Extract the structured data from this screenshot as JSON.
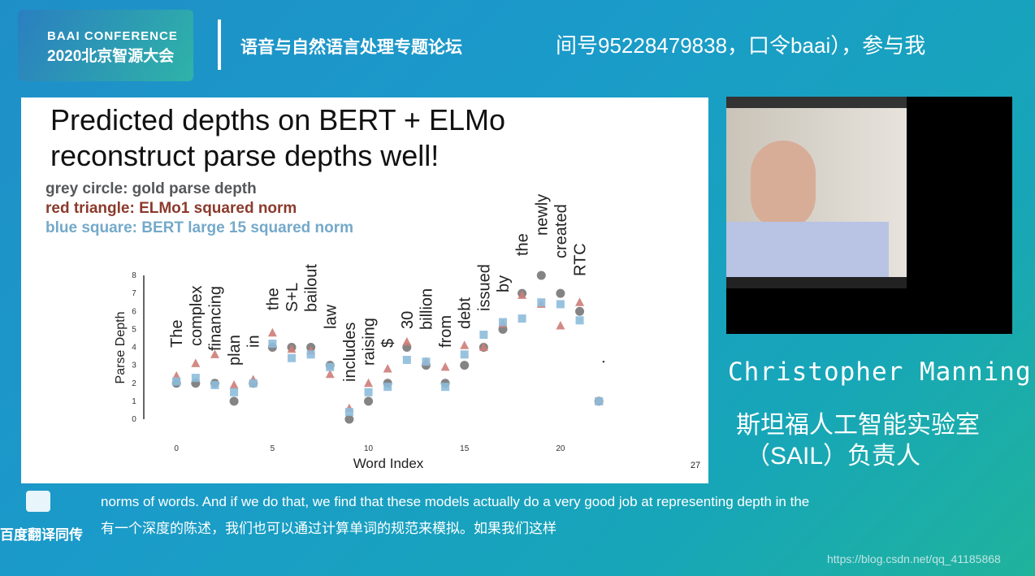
{
  "header": {
    "logo_top": "BAAI CONFERENCE",
    "logo_bottom": "2020北京智源大会",
    "forum": "语音与自然语言处理专题论坛",
    "ticker": "间号95228479838，口令baai），参与我"
  },
  "chart_data": {
    "type": "scatter",
    "title_lines": [
      "Predicted depths on BERT + ELMo",
      "reconstruct parse depths well!"
    ],
    "x": [
      0,
      1,
      2,
      3,
      4,
      5,
      6,
      7,
      8,
      9,
      10,
      11,
      12,
      13,
      14,
      15,
      16,
      17,
      18,
      19,
      20,
      21,
      22
    ],
    "words": [
      "The",
      "complex",
      "financing",
      "plan",
      "in",
      "the",
      "S+L",
      "bailout",
      "law",
      "includes",
      "raising",
      "$",
      "30",
      "billion",
      "from",
      "debt",
      "issued",
      "by",
      "the",
      "newly",
      "created",
      "RTC",
      "."
    ],
    "series": [
      {
        "name": "grey circle: gold parse depth",
        "legend_color": "#55585a",
        "color": "#6e6e6e",
        "marker": "circle",
        "values": [
          2,
          2,
          2,
          1,
          2,
          4,
          4,
          4,
          3,
          0,
          1,
          2,
          4,
          3,
          2,
          3,
          4,
          5,
          7,
          8,
          7,
          6,
          1
        ]
      },
      {
        "name": "red triangle: ELMo1 squared norm",
        "legend_color": "#8b3a2c",
        "color": "#cd7d78",
        "marker": "triangle",
        "values": [
          2.4,
          3.1,
          3.6,
          1.9,
          2.2,
          4.8,
          3.9,
          3.8,
          2.5,
          0.6,
          2.0,
          2.8,
          4.3,
          3.2,
          2.9,
          4.1,
          4.0,
          5.3,
          6.9,
          6.4,
          5.2,
          6.5,
          1.0
        ]
      },
      {
        "name": "blue square: BERT large 15 squared norm",
        "legend_color": "#74a9c9",
        "color": "#8dbcdc",
        "marker": "square",
        "values": [
          2.1,
          2.3,
          1.9,
          1.5,
          2.0,
          4.2,
          3.4,
          3.6,
          2.9,
          0.4,
          1.5,
          1.8,
          3.3,
          3.2,
          1.8,
          3.6,
          4.7,
          5.4,
          5.6,
          6.5,
          6.4,
          5.5,
          1.0
        ]
      }
    ],
    "xlabel": "Word Index",
    "ylabel": "Parse Depth",
    "xlim": [
      -1.7,
      22.5
    ],
    "ylim": [
      0,
      8
    ],
    "xticks": [
      0,
      5,
      10,
      15,
      20
    ],
    "yticks": [
      0,
      1,
      2,
      3,
      4,
      5,
      6,
      7,
      8
    ],
    "page_number": "27"
  },
  "speaker": {
    "name": "Christopher Manning",
    "title_line1": "斯坦福人工智能实验室",
    "title_line2": "（SAIL）负责人"
  },
  "subtitles": {
    "brand": "百度翻译同传",
    "english": "norms of words. And if we do that, we find that these models actually do a very good job at representing depth in the",
    "chinese": "有一个深度的陈述，我们也可以通过计算单词的规范来模拟。如果我们这样"
  },
  "watermark": "https://blog.csdn.net/qq_41185868"
}
